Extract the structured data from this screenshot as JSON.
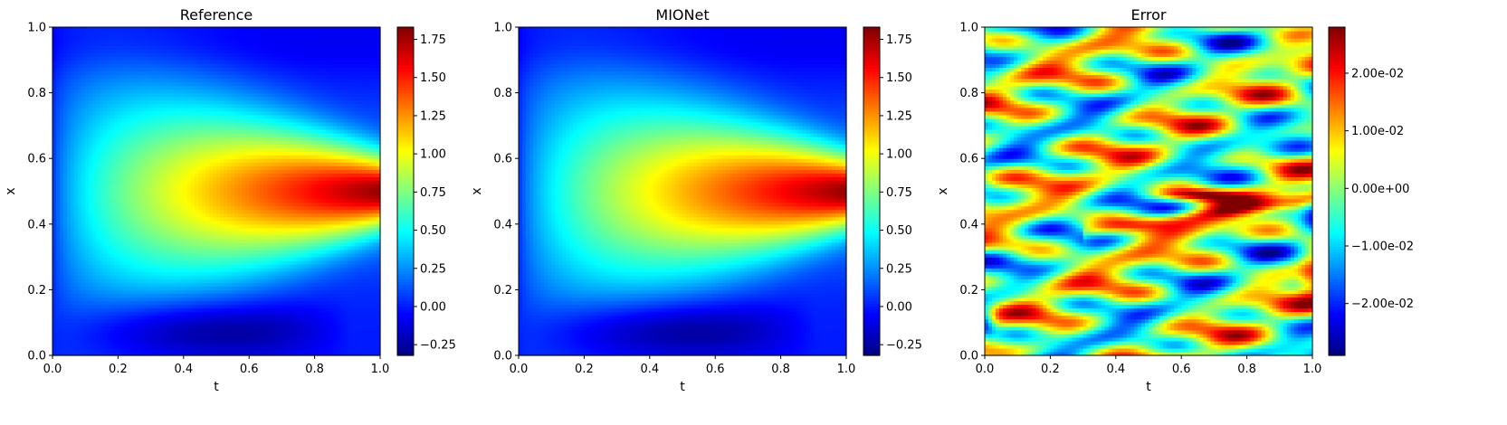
{
  "colormap": "jet",
  "chart_data": [
    {
      "type": "heatmap",
      "title": "Reference",
      "xlabel": "t",
      "ylabel": "x",
      "xlim": [
        0,
        1
      ],
      "ylim": [
        0,
        1
      ],
      "xticks": [
        "0.0",
        "0.2",
        "0.4",
        "0.6",
        "0.8",
        "1.0"
      ],
      "yticks": [
        "0.0",
        "0.2",
        "0.4",
        "0.6",
        "0.8",
        "1.0"
      ],
      "colorbar": {
        "range": [
          -0.32,
          1.83
        ],
        "ticks": [
          -0.25,
          0.0,
          0.25,
          0.5,
          0.75,
          1.0,
          1.25,
          1.5,
          1.75
        ],
        "tick_labels": [
          "−0.25",
          "0.00",
          "0.25",
          "0.50",
          "0.75",
          "1.00",
          "1.25",
          "1.50",
          "1.75"
        ]
      },
      "field": {
        "kind": "solution",
        "peak_value": 1.83,
        "peak_at": [
          1.0,
          0.5
        ],
        "min_value": -0.32,
        "min_at": [
          0.6,
          0.08
        ]
      }
    },
    {
      "type": "heatmap",
      "title": "MIONet",
      "xlabel": "t",
      "ylabel": "x",
      "xlim": [
        0,
        1
      ],
      "ylim": [
        0,
        1
      ],
      "xticks": [
        "0.0",
        "0.2",
        "0.4",
        "0.6",
        "0.8",
        "1.0"
      ],
      "yticks": [
        "0.0",
        "0.2",
        "0.4",
        "0.6",
        "0.8",
        "1.0"
      ],
      "colorbar": {
        "range": [
          -0.32,
          1.83
        ],
        "ticks": [
          -0.25,
          0.0,
          0.25,
          0.5,
          0.75,
          1.0,
          1.25,
          1.5,
          1.75
        ],
        "tick_labels": [
          "−0.25",
          "0.00",
          "0.25",
          "0.50",
          "0.75",
          "1.00",
          "1.25",
          "1.50",
          "1.75"
        ]
      },
      "field": {
        "kind": "solution",
        "peak_value": 1.83,
        "peak_at": [
          1.0,
          0.5
        ],
        "min_value": -0.32,
        "min_at": [
          0.6,
          0.08
        ]
      }
    },
    {
      "type": "heatmap",
      "title": "Error",
      "xlabel": "t",
      "ylabel": "x",
      "xlim": [
        0,
        1
      ],
      "ylim": [
        0,
        1
      ],
      "xticks": [
        "0.0",
        "0.2",
        "0.4",
        "0.6",
        "0.8",
        "1.0"
      ],
      "yticks": [
        "0.0",
        "0.2",
        "0.4",
        "0.6",
        "0.8",
        "1.0"
      ],
      "colorbar": {
        "range": [
          -0.029,
          0.028
        ],
        "ticks": [
          -0.02,
          -0.01,
          0.0,
          0.01,
          0.02
        ],
        "tick_labels": [
          "−2.00e-02",
          "−1.00e-02",
          "0.00e+00",
          "1.00e-02",
          "2.00e-02"
        ]
      },
      "field": {
        "kind": "error",
        "min_value": -0.029,
        "max_value": 0.028
      }
    }
  ]
}
